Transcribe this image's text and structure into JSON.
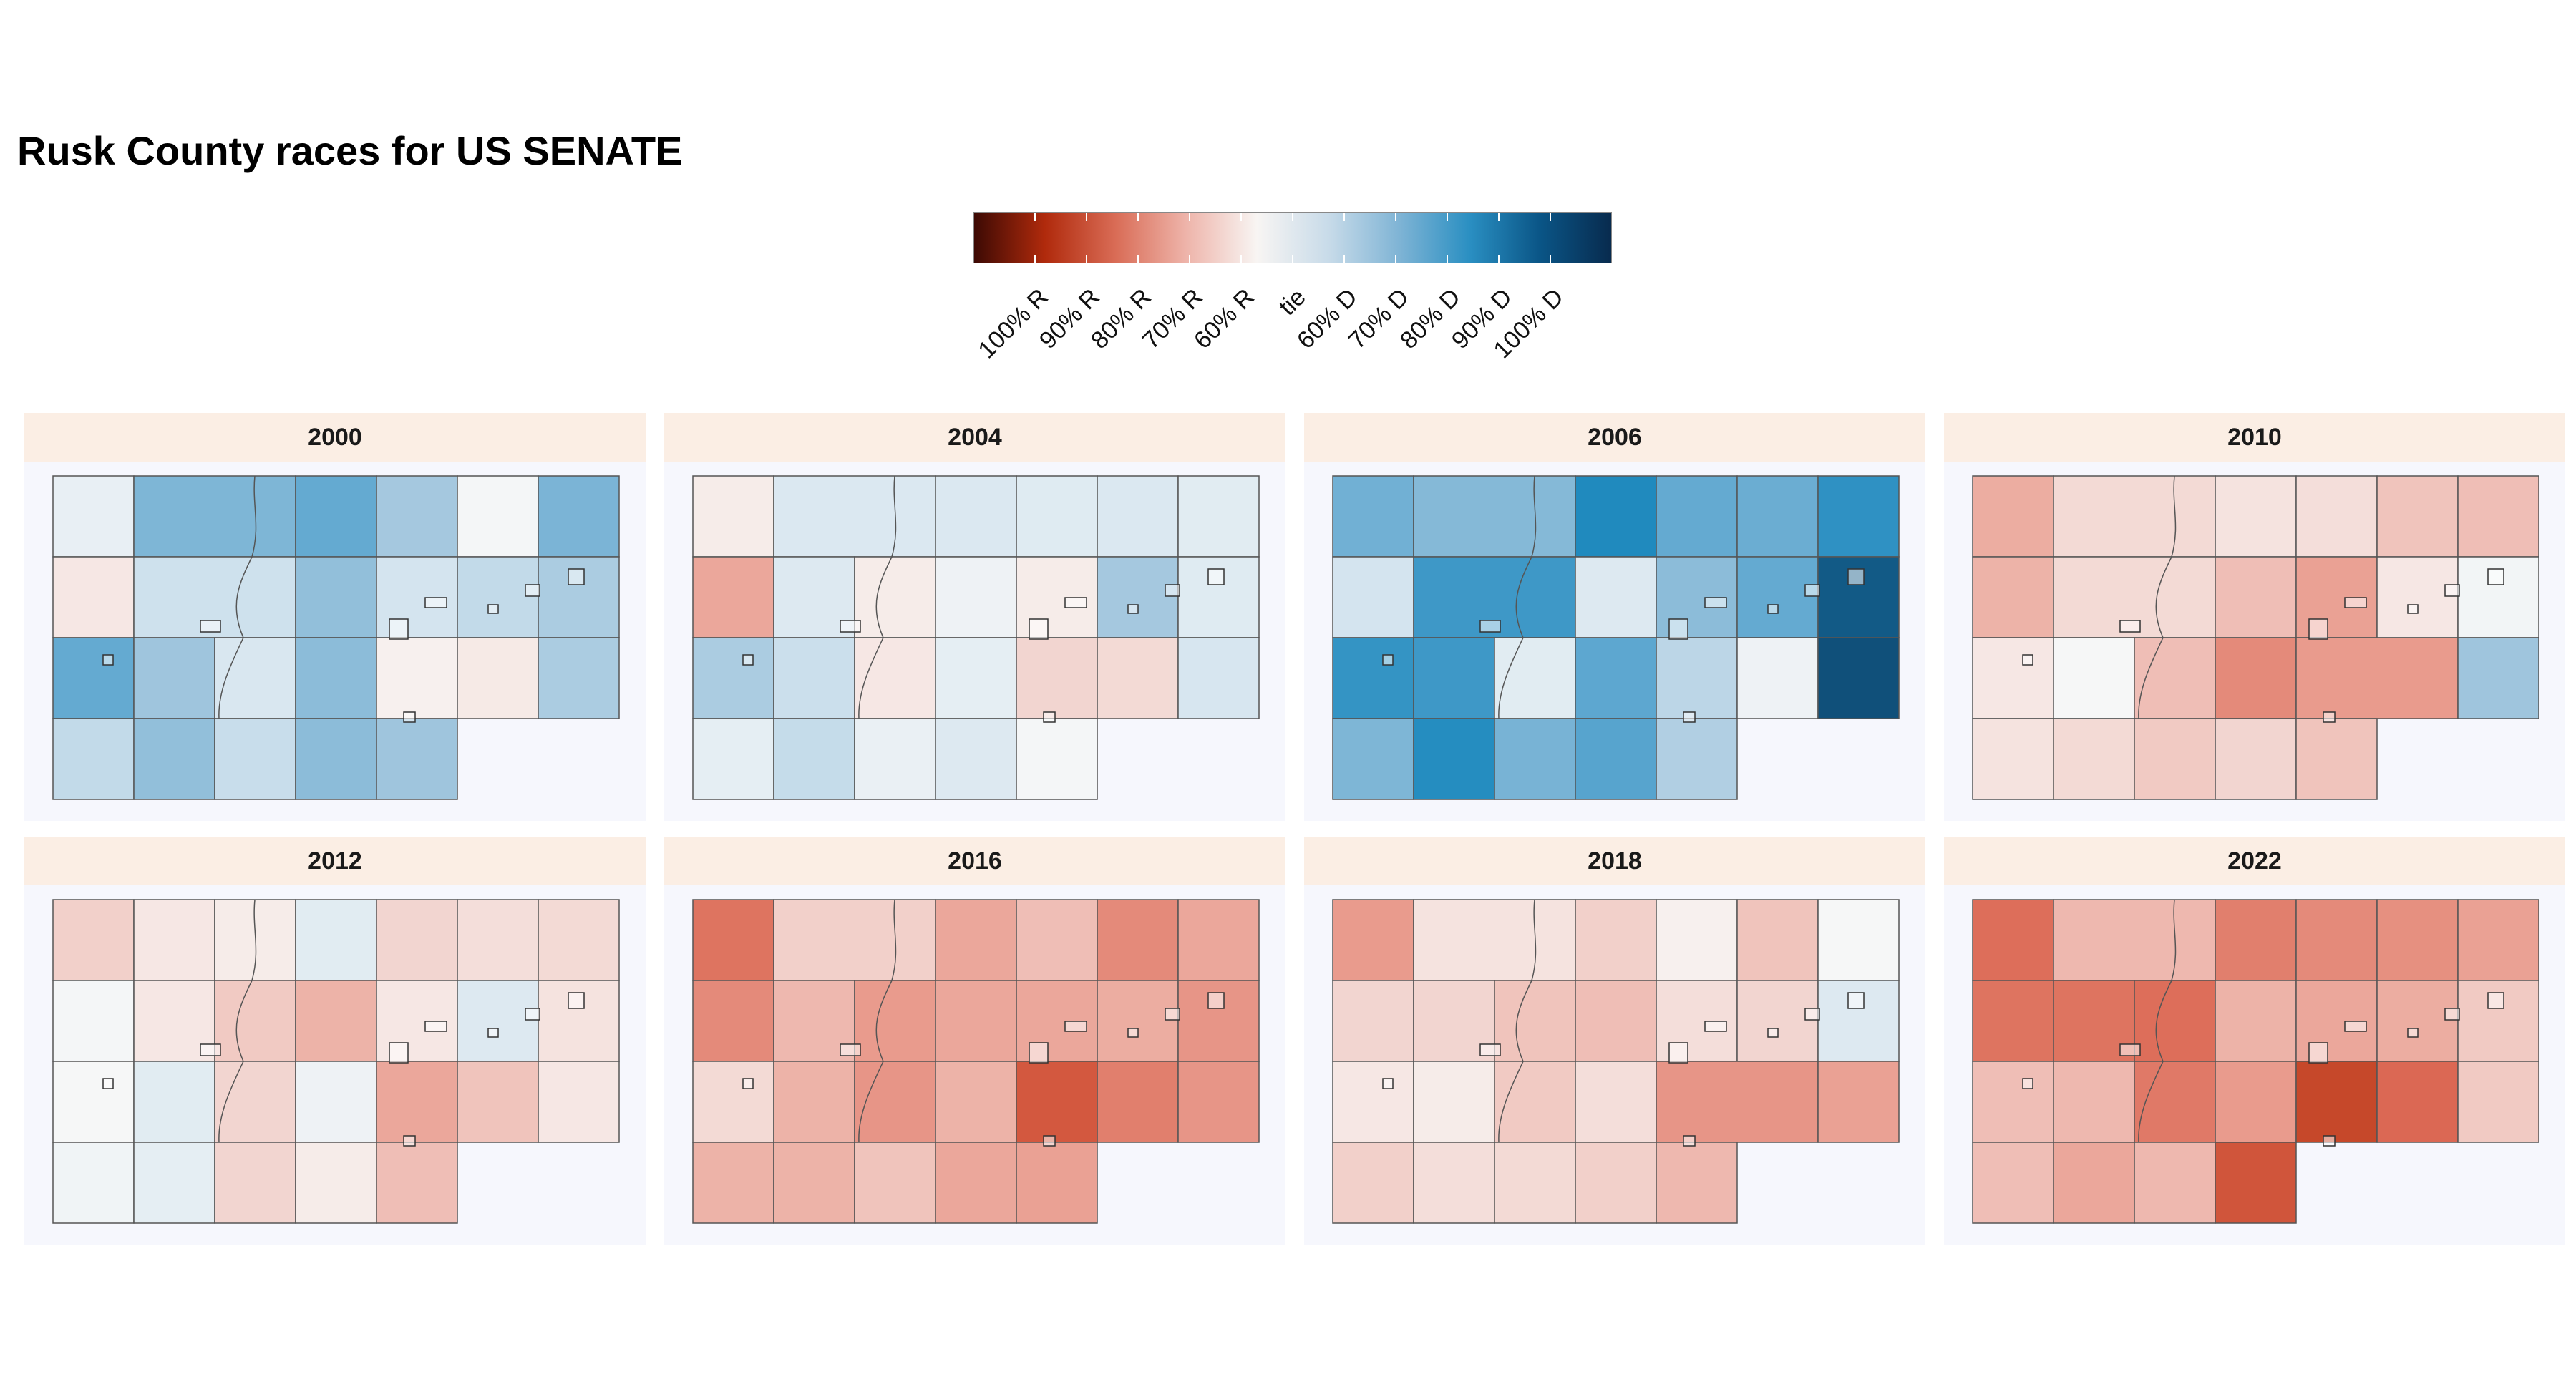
{
  "title": "Rusk County races for US SENATE",
  "legend": {
    "labels": [
      "100% R",
      "90% R",
      "80% R",
      "70% R",
      "60% R",
      "tie",
      "60% D",
      "70% D",
      "80% D",
      "90% D",
      "100% D"
    ],
    "scale_colors": [
      "#3d0a04",
      "#b02a0c",
      "#d96c56",
      "#eeb4aa",
      "#f8f5f3",
      "#c8dbe9",
      "#7fb4d5",
      "#2a8fc2",
      "#0a5586",
      "#082b4e"
    ]
  },
  "colors": {
    "strip": "#fbeee4",
    "panel_bg": "#f6f7fd",
    "border": "#555555"
  },
  "panels": [
    {
      "year": "2000",
      "cells": [
        [
          0.07,
          0.44,
          0.52,
          0.32,
          0.01,
          0.45
        ],
        [
          -0.06,
          0.18,
          0.38,
          0.16,
          0.22,
          0.3
        ],
        [
          0.52,
          0.34,
          0.14,
          0.4,
          -0.02,
          -0.05,
          0.3
        ],
        [
          0.22,
          0.38,
          0.2,
          0.4,
          0.34
        ]
      ]
    },
    {
      "year": "2004",
      "cells": [
        [
          -0.04,
          0.13,
          0.13,
          0.11,
          0.13,
          0.1
        ],
        [
          -0.3,
          0.12,
          -0.04,
          0.04,
          -0.04,
          0.32,
          0.11
        ],
        [
          0.3,
          0.19,
          -0.06,
          0.08,
          -0.14,
          -0.12,
          0.15
        ],
        [
          0.08,
          0.21,
          0.06,
          0.12,
          0.01
        ]
      ]
    },
    {
      "year": "2006",
      "cells": [
        [
          0.48,
          0.42,
          0.78,
          0.52,
          0.5,
          0.72
        ],
        [
          0.16,
          0.66,
          0.12,
          0.4,
          0.52,
          0.9
        ],
        [
          0.7,
          0.66,
          0.1,
          0.54,
          0.24,
          0.04,
          0.92
        ],
        [
          0.44,
          0.76,
          0.46,
          0.56,
          0.28
        ]
      ]
    },
    {
      "year": "2010",
      "cells": [
        [
          -0.28,
          -0.12,
          -0.08,
          -0.1,
          -0.2,
          -0.22
        ],
        [
          -0.26,
          -0.12,
          -0.22,
          -0.32,
          -0.06,
          0.02
        ],
        [
          -0.06,
          0.0,
          -0.22,
          -0.4,
          -0.34,
          0.34
        ],
        [
          -0.08,
          -0.12,
          -0.18,
          -0.14,
          -0.2
        ]
      ]
    },
    {
      "year": "2012",
      "cells": [
        [
          -0.16,
          -0.06,
          -0.04,
          0.1,
          -0.14,
          -0.1,
          -0.12
        ],
        [
          0.01,
          -0.06,
          -0.18,
          -0.26,
          -0.06,
          0.12,
          -0.08
        ],
        [
          0.0,
          0.1,
          -0.14,
          0.04,
          -0.3,
          -0.2,
          -0.06
        ],
        [
          0.03,
          0.08,
          -0.14,
          -0.04,
          -0.22
        ]
      ]
    },
    {
      "year": "2016",
      "cells": [
        [
          -0.48,
          -0.16,
          -0.3,
          -0.22,
          -0.4,
          -0.3
        ],
        [
          -0.4,
          -0.24,
          -0.34,
          -0.3,
          -0.3,
          -0.28,
          -0.36
        ],
        [
          -0.12,
          -0.26,
          -0.36,
          -0.26,
          -0.6,
          -0.44,
          -0.36
        ],
        [
          -0.26,
          -0.26,
          -0.2,
          -0.3,
          -0.32
        ]
      ]
    },
    {
      "year": "2018",
      "cells": [
        [
          -0.34,
          -0.08,
          -0.16,
          -0.02,
          -0.2,
          0.0
        ],
        [
          -0.14,
          -0.14,
          -0.2,
          -0.22,
          -0.1,
          -0.14,
          0.12
        ],
        [
          -0.06,
          -0.04,
          -0.18,
          -0.1,
          -0.36,
          -0.32
        ],
        [
          -0.16,
          -0.1,
          -0.12,
          -0.16,
          -0.24
        ]
      ]
    },
    {
      "year": "2022",
      "cells": [
        [
          -0.5,
          -0.24,
          -0.44,
          -0.4,
          -0.38,
          -0.32
        ],
        [
          -0.48,
          -0.48,
          -0.5,
          -0.26,
          -0.3,
          -0.28,
          -0.18
        ],
        [
          -0.22,
          -0.24,
          -0.46,
          -0.34,
          -0.7,
          -0.52,
          -0.18
        ],
        [
          -0.22,
          -0.3,
          -0.24,
          -0.62
        ]
      ]
    }
  ]
}
